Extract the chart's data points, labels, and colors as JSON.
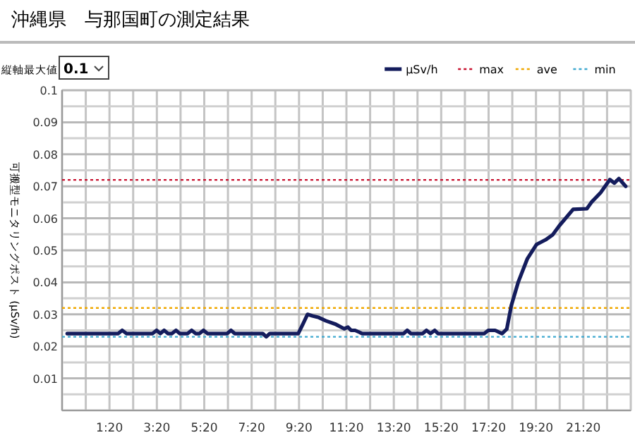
{
  "chart_data": {
    "type": "line",
    "title": "沖縄県　与那国町の測定結果",
    "ylabel": "可搬型モニタリングポスト (μSv/h)",
    "annotations": [
      "縦軸最大値",
      "0.1"
    ],
    "x": [
      -0.45,
      1.7,
      1.87,
      2.05,
      3.15,
      3.32,
      3.48,
      3.64,
      3.8,
      3.97,
      4.14,
      4.3,
      4.63,
      4.8,
      4.97,
      5.13,
      5.3,
      5.47,
      6.3,
      6.46,
      6.62,
      7.8,
      7.95,
      8.1,
      9.3,
      9.5,
      9.69,
      9.9,
      10.17,
      10.46,
      10.85,
      11.24,
      11.4,
      11.53,
      11.7,
      12.0,
      13.75,
      13.9,
      14.05,
      14.55,
      14.71,
      14.88,
      15.06,
      15.2,
      17.15,
      17.32,
      17.61,
      17.9,
      18.1,
      18.29,
      18.58,
      18.97,
      19.35,
      19.74,
      20.03,
      20.32,
      20.9,
      21.48,
      21.67,
      22.06,
      22.45,
      22.64,
      22.83,
      23.12
    ],
    "series": [
      {
        "name": "μSv/h",
        "color": "#141c5c",
        "values": [
          0.024,
          0.024,
          0.025,
          0.024,
          0.024,
          0.025,
          0.024,
          0.025,
          0.024,
          0.024,
          0.025,
          0.024,
          0.024,
          0.025,
          0.024,
          0.024,
          0.025,
          0.024,
          0.024,
          0.025,
          0.024,
          0.024,
          0.023,
          0.024,
          0.024,
          0.027,
          0.03,
          0.0295,
          0.029,
          0.028,
          0.027,
          0.0255,
          0.026,
          0.025,
          0.025,
          0.024,
          0.024,
          0.025,
          0.024,
          0.024,
          0.025,
          0.024,
          0.025,
          0.024,
          0.024,
          0.025,
          0.025,
          0.024,
          0.0254,
          0.0327,
          0.04,
          0.0474,
          0.0518,
          0.0533,
          0.0548,
          0.0577,
          0.0628,
          0.063,
          0.065,
          0.068,
          0.0721,
          0.071,
          0.0724,
          0.07
        ]
      }
    ],
    "ref_lines": [
      {
        "axis": "y",
        "value": 0.072,
        "label": "max",
        "color": "#c8102e",
        "line_style": "dotted"
      },
      {
        "axis": "y",
        "value": 0.032,
        "label": "ave",
        "color": "#f0a800",
        "line_style": "dotted"
      },
      {
        "axis": "y",
        "value": 0.023,
        "label": "min",
        "color": "#3fa9d0",
        "line_style": "dotted"
      }
    ],
    "xlim": [
      -0.667,
      23.333
    ],
    "xticks": [
      {
        "value": -0.667,
        "label": null
      },
      {
        "value": 0.333,
        "label": null
      },
      {
        "value": 1.333,
        "label": "1:20"
      },
      {
        "value": 2.333,
        "label": null
      },
      {
        "value": 3.333,
        "label": "3:20"
      },
      {
        "value": 4.333,
        "label": null
      },
      {
        "value": 5.333,
        "label": "5:20"
      },
      {
        "value": 6.333,
        "label": null
      },
      {
        "value": 7.333,
        "label": "7:20"
      },
      {
        "value": 8.333,
        "label": null
      },
      {
        "value": 9.333,
        "label": "9:20"
      },
      {
        "value": 10.333,
        "label": null
      },
      {
        "value": 11.333,
        "label": "11:20"
      },
      {
        "value": 12.333,
        "label": null
      },
      {
        "value": 13.333,
        "label": "13:20"
      },
      {
        "value": 14.333,
        "label": null
      },
      {
        "value": 15.333,
        "label": "15:20"
      },
      {
        "value": 16.333,
        "label": null
      },
      {
        "value": 17.333,
        "label": "17:20"
      },
      {
        "value": 18.333,
        "label": null
      },
      {
        "value": 19.333,
        "label": "19:20"
      },
      {
        "value": 20.333,
        "label": null
      },
      {
        "value": 21.333,
        "label": "21:20"
      },
      {
        "value": 22.333,
        "label": null
      },
      {
        "value": 23.333,
        "label": null
      }
    ],
    "ylim": [
      0,
      0.1
    ],
    "yticks": [
      {
        "value": 0,
        "label": null
      },
      {
        "value": 0.005,
        "label": null
      },
      0.01,
      {
        "value": 0.015,
        "label": null
      },
      0.02,
      {
        "value": 0.025,
        "label": null
      },
      0.03,
      {
        "value": 0.035,
        "label": null
      },
      0.04,
      {
        "value": 0.045,
        "label": null
      },
      0.05,
      {
        "value": 0.055,
        "label": null
      },
      0.06,
      {
        "value": 0.065,
        "label": null
      },
      0.07,
      {
        "value": 0.075,
        "label": null
      },
      0.08,
      {
        "value": 0.085,
        "label": null
      },
      0.09,
      {
        "value": 0.095,
        "label": null
      },
      0.1
    ],
    "grid": true,
    "legend": "top right",
    "line_style": "solid",
    "marker": "none"
  }
}
